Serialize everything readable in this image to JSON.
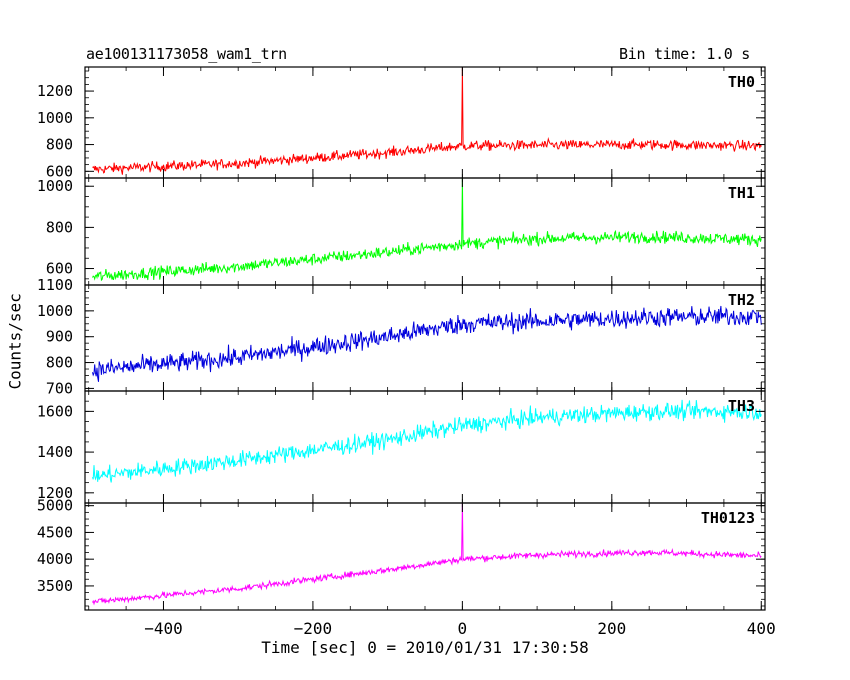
{
  "chart_data": {
    "type": "line",
    "title": "ae100131173058_wam1_trn",
    "bin_time_label": "Bin time: 1.0 s",
    "xlabel": "Time [sec] 0 = 2010/01/31 17:30:58",
    "ylabel": "Counts/sec",
    "xlim": [
      -505,
      405
    ],
    "x_ticks": [
      -400,
      -200,
      0,
      200,
      400
    ],
    "x_tick_labels": [
      "−400",
      "−200",
      "0",
      "200",
      "400"
    ],
    "panels": [
      {
        "name": "TH0",
        "color": "#ff0000",
        "ylim": [
          550,
          1380
        ],
        "yticks": [
          600,
          800,
          1000,
          1200
        ],
        "trend": [
          [
            -495,
            615
          ],
          [
            -300,
            660
          ],
          [
            -100,
            740
          ],
          [
            0,
            790
          ],
          [
            100,
            795
          ],
          [
            250,
            800
          ],
          [
            400,
            790
          ]
        ],
        "noise": 45,
        "spike": {
          "x": 0,
          "value": 1380
        }
      },
      {
        "name": "TH1",
        "color": "#00ff00",
        "ylim": [
          520,
          1040
        ],
        "yticks": [
          600,
          800,
          1000
        ],
        "trend": [
          [
            -495,
            560
          ],
          [
            -300,
            610
          ],
          [
            -100,
            680
          ],
          [
            0,
            720
          ],
          [
            100,
            745
          ],
          [
            250,
            755
          ],
          [
            400,
            740
          ]
        ],
        "noise": 35,
        "spike": {
          "x": 0,
          "value": 1040
        }
      },
      {
        "name": "TH2",
        "color": "#0000dd",
        "ylim": [
          690,
          1100
        ],
        "yticks": [
          700,
          800,
          900,
          1000,
          1100
        ],
        "trend": [
          [
            -495,
            770
          ],
          [
            -300,
            820
          ],
          [
            -100,
            900
          ],
          [
            0,
            950
          ],
          [
            100,
            960
          ],
          [
            250,
            975
          ],
          [
            400,
            980
          ]
        ],
        "noise": 45,
        "spike": null
      },
      {
        "name": "TH3",
        "color": "#00ffff",
        "ylim": [
          1150,
          1700
        ],
        "yticks": [
          1200,
          1400,
          1600
        ],
        "trend": [
          [
            -495,
            1280
          ],
          [
            -300,
            1360
          ],
          [
            -100,
            1460
          ],
          [
            0,
            1530
          ],
          [
            100,
            1570
          ],
          [
            250,
            1600
          ],
          [
            400,
            1600
          ]
        ],
        "noise": 50,
        "spike": null
      },
      {
        "name": "TH0123",
        "color": "#ff00ff",
        "ylim": [
          3050,
          5050
        ],
        "yticks": [
          3500,
          4000,
          4500,
          5000
        ],
        "trend": [
          [
            -495,
            3200
          ],
          [
            -300,
            3450
          ],
          [
            -100,
            3800
          ],
          [
            0,
            4000
          ],
          [
            100,
            4080
          ],
          [
            250,
            4130
          ],
          [
            400,
            4060
          ]
        ],
        "noise": 70,
        "spike": {
          "x": 0,
          "value": 5050
        }
      }
    ]
  }
}
